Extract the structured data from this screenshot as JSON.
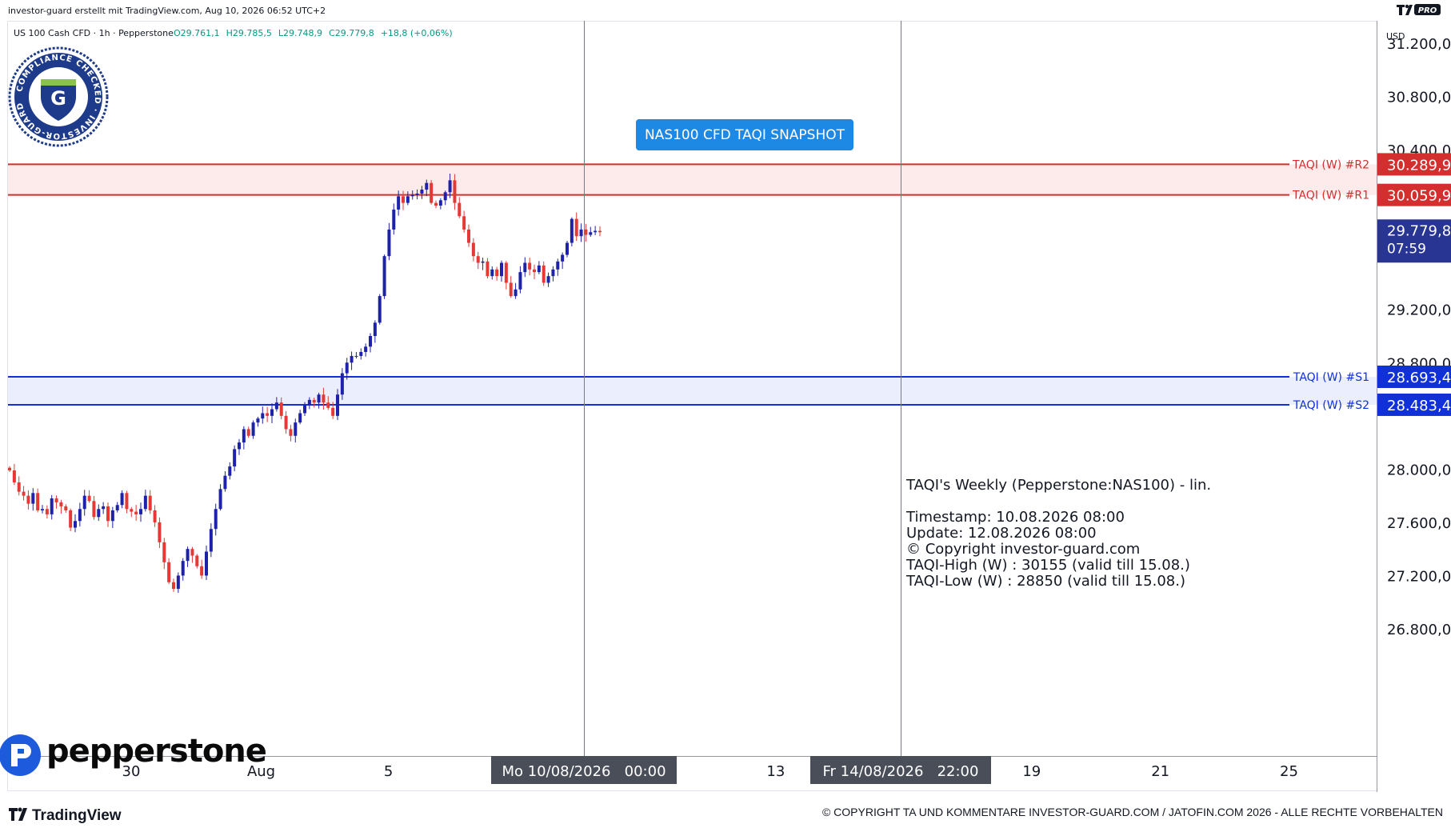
{
  "header": {
    "credit": "investor-guard erstellt mit TradingView.com, Aug 10, 2026 06:52 UTC+2",
    "tv_badge": "PRO"
  },
  "symbol_bar": {
    "name": "US 100 Cash CFD · 1h · Pepperstone",
    "open": "O29.761,1",
    "high": "H29.785,5",
    "low": "L29.748,9",
    "close": "C29.779,8",
    "change": "+18,8 (+0,06%)"
  },
  "seal": {
    "ring_text": "COMPLIANCE CHECKED · INVESTOR-GUARD ·",
    "letter": "G"
  },
  "title_badge": "NAS100 CFD TAQI SNAPSHOT",
  "currency": "USD",
  "levels": [
    {
      "label": "TAQI (W) #R2",
      "value": "30.289,9",
      "price": 30289.9,
      "color": "#d32f2f"
    },
    {
      "label": "TAQI (W) #R1",
      "value": "30.059,9",
      "price": 30059.9,
      "color": "#d32f2f"
    },
    {
      "label": "TAQI (W) #S1",
      "value": "28.693,4",
      "price": 28693.4,
      "color": "#1030d8"
    },
    {
      "label": "TAQI (W) #S2",
      "value": "28.483,4",
      "price": 28483.4,
      "color": "#1030d8"
    }
  ],
  "last_price": {
    "value": "29.779,8",
    "countdown": "07:59",
    "price": 29779.8
  },
  "info_box": {
    "title": "TAQI's Weekly (Pepperstone:NAS100) - lin.",
    "lines": [
      "Timestamp: 10.08.2026 08:00",
      "Update: 12.08.2026 08:00",
      "© Copyright investor-guard.com",
      "TAQI-High (W) : 30155 (valid till 15.08.)",
      "TAQI-Low (W) : 28850 (valid till 15.08.)"
    ]
  },
  "x_labels": [
    {
      "text": "30",
      "pos": 0.09
    },
    {
      "text": "Aug",
      "pos": 0.185
    },
    {
      "text": "5",
      "pos": 0.278
    },
    {
      "text": "13",
      "pos": 0.561
    },
    {
      "text": "19",
      "pos": 0.748
    },
    {
      "text": "21",
      "pos": 0.842
    },
    {
      "text": "25",
      "pos": 0.936
    }
  ],
  "x_markers": [
    {
      "text": "Mo 10/08/2026   00:00"
    },
    {
      "text": "Fr 14/08/2026   22:00"
    }
  ],
  "brand": {
    "pepperstone": "pepperstone",
    "tradingview": "TradingView"
  },
  "footer": "© COPYRIGHT TA UND KOMMENTARE INVESTOR-GUARD.COM / JATOFIN.COM 2026 - ALLE RECHTE VORBEHALTEN",
  "colors": {
    "up": "#1e22aa",
    "down": "#e53935",
    "accent": "#1e88e5",
    "resistance_zone": "#fdeaea",
    "support_zone": "#eaeefd"
  },
  "chart_data": {
    "type": "candlestick",
    "title": "",
    "ylabel": "",
    "ylim": [
      26600,
      31300
    ],
    "y_ticks": [
      "31.200,0",
      "30.800,0",
      "30.400,0",
      "29.200,0",
      "28.800,0",
      "28.000,0",
      "27.600,0",
      "27.200,0",
      "26.800,0"
    ],
    "y_tick_values": [
      31200,
      30800,
      30400,
      29200,
      28800,
      28000,
      27600,
      27200,
      26800
    ],
    "close_series": [
      27990,
      27900,
      27830,
      27800,
      27740,
      27820,
      27690,
      27700,
      27660,
      27780,
      27750,
      27720,
      27690,
      27560,
      27610,
      27700,
      27800,
      27760,
      27640,
      27700,
      27720,
      27610,
      27690,
      27730,
      27820,
      27700,
      27680,
      27660,
      27700,
      27800,
      27690,
      27600,
      27450,
      27300,
      27150,
      27100,
      27200,
      27310,
      27400,
      27350,
      27270,
      27200,
      27380,
      27550,
      27700,
      27850,
      27950,
      28020,
      28150,
      28200,
      28300,
      28250,
      28350,
      28380,
      28420,
      28400,
      28450,
      28500,
      28400,
      28300,
      28250,
      28350,
      28420,
      28480,
      28520,
      28500,
      28560,
      28500,
      28460,
      28400,
      28560,
      28720,
      28800,
      28850,
      28850,
      28880,
      28920,
      29000,
      29100,
      29300,
      29600,
      29800,
      29950,
      30050,
      30000,
      30050,
      30060,
      30070,
      30100,
      30150,
      30000,
      29980,
      30020,
      30080,
      30170,
      30000,
      29900,
      29800,
      29700,
      29600,
      29550,
      29560,
      29450,
      29500,
      29450,
      29550,
      29400,
      29300,
      29350,
      29480,
      29550,
      29500,
      29480,
      29530,
      29400,
      29450,
      29500,
      29560,
      29610,
      29700,
      29880,
      29750,
      29800,
      29760,
      29780,
      29790,
      29780
    ],
    "vertical_markers": [
      "Mo 10/08/2026 00:00",
      "Fr 14/08/2026 22:00"
    ]
  }
}
